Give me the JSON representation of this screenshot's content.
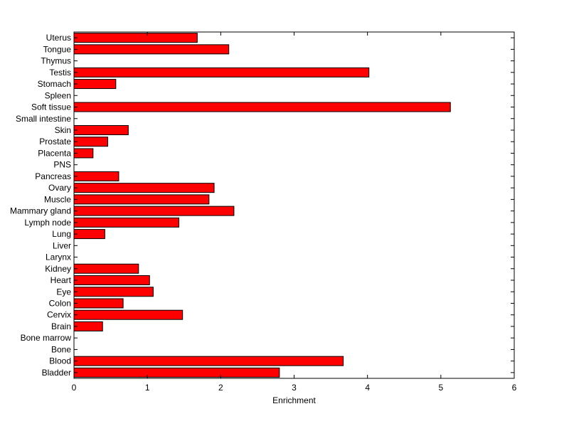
{
  "chart_data": {
    "type": "bar",
    "orientation": "horizontal",
    "title": "",
    "xlabel": "Enrichment",
    "ylabel": "",
    "xlim": [
      0,
      6
    ],
    "xticks": [
      0,
      1,
      2,
      3,
      4,
      5,
      6
    ],
    "grid": false,
    "bar_color": "#ff0000",
    "categories": [
      "Uterus",
      "Tongue",
      "Thymus",
      "Testis",
      "Stomach",
      "Spleen",
      "Soft tissue",
      "Small intestine",
      "Skin",
      "Prostate",
      "Placenta",
      "PNS",
      "Pancreas",
      "Ovary",
      "Muscle",
      "Mammary gland",
      "Lymph node",
      "Lung",
      "Liver",
      "Larynx",
      "Kidney",
      "Heart",
      "Eye",
      "Colon",
      "Cervix",
      "Brain",
      "Bone marrow",
      "Bone",
      "Blood",
      "Bladder"
    ],
    "values": [
      1.68,
      2.11,
      0,
      4.02,
      0.57,
      0,
      5.13,
      0,
      0.74,
      0.46,
      0.26,
      0,
      0.61,
      1.91,
      1.84,
      2.18,
      1.43,
      0.42,
      0,
      0,
      0.88,
      1.03,
      1.08,
      0.67,
      1.48,
      0.39,
      0,
      0,
      3.67,
      2.8
    ]
  }
}
